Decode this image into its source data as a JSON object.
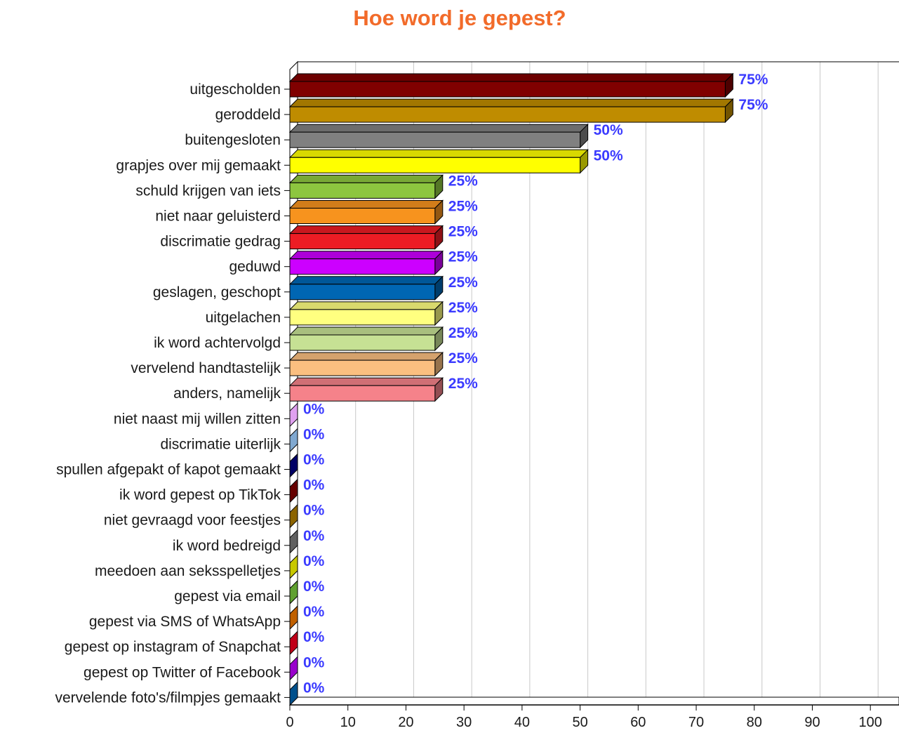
{
  "chart_data": {
    "type": "bar",
    "orientation": "horizontal",
    "title": "Hoe word je gepest?",
    "xlabel": "",
    "ylabel": "",
    "xlim": [
      0,
      100
    ],
    "xticks": [
      0,
      10,
      20,
      30,
      40,
      50,
      60,
      70,
      80,
      90,
      100
    ],
    "grid": true,
    "value_suffix": "%",
    "categories": [
      "uitgescholden",
      "geroddeld",
      "buitengesloten",
      "grapjes over mij gemaakt",
      "schuld krijgen van iets",
      "niet naar geluisterd",
      "discrimatie gedrag",
      "geduwd",
      "geslagen, geschopt",
      "uitgelachen",
      "ik word achtervolgd",
      "vervelend handtastelijk",
      "anders, namelijk",
      "niet naast mij willen zitten",
      "discrimatie uiterlijk",
      "spullen afgepakt of kapot gemaakt",
      "ik word gepest op TikTok",
      "niet gevraagd voor feestjes",
      "ik word bedreigd",
      "meedoen aan seksspelletjes",
      "gepest via email",
      "gepest via SMS of WhatsApp",
      "gepest op instagram of Snapchat",
      "gepest op Twitter of Facebook",
      "vervelende foto's/filmpjes gemaakt"
    ],
    "values": [
      75,
      75,
      50,
      50,
      25,
      25,
      25,
      25,
      25,
      25,
      25,
      25,
      25,
      0,
      0,
      0,
      0,
      0,
      0,
      0,
      0,
      0,
      0,
      0,
      0
    ],
    "colors": [
      "#800000",
      "#bf8c00",
      "#808080",
      "#ffff00",
      "#8dc63f",
      "#f7931e",
      "#ed1c24",
      "#cc00ff",
      "#0066b3",
      "#ffff80",
      "#c6e194",
      "#fbbf80",
      "#f5828a",
      "#e0a0f0",
      "#80a8d0",
      "#000066",
      "#660000",
      "#8c6400",
      "#606060",
      "#c8c800",
      "#60a030",
      "#c06000",
      "#c00018",
      "#9900cc",
      "#00508c"
    ]
  }
}
